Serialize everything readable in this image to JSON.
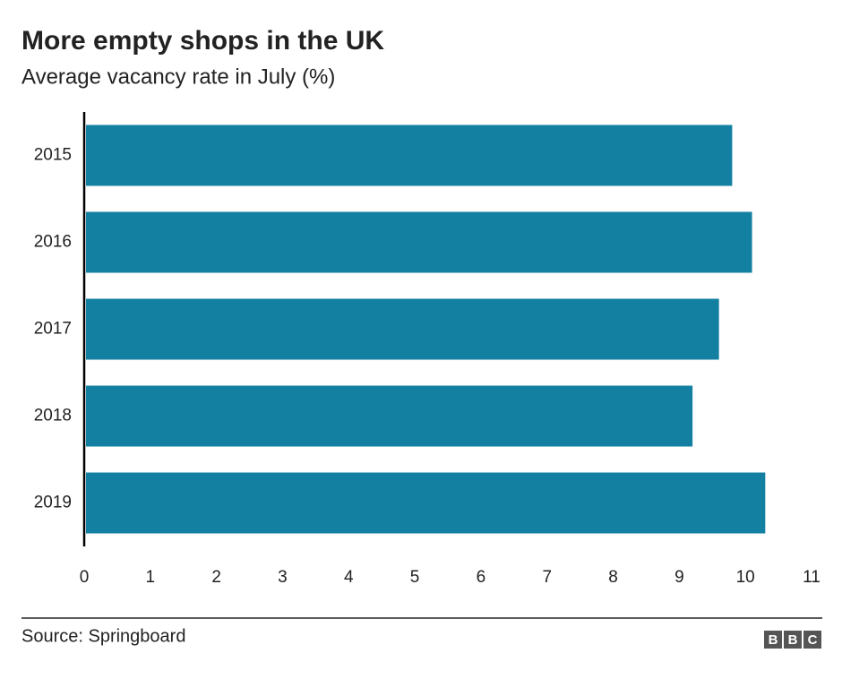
{
  "chart_data": {
    "type": "bar",
    "orientation": "horizontal",
    "title": "More empty shops in the UK",
    "subtitle": "Average vacancy rate in July (%)",
    "categories": [
      "2015",
      "2016",
      "2017",
      "2018",
      "2019"
    ],
    "values": [
      9.8,
      10.1,
      9.6,
      9.2,
      10.3
    ],
    "color": "#1380a1",
    "xlim": [
      0,
      11
    ],
    "xticks": [
      0,
      1,
      2,
      3,
      4,
      5,
      6,
      7,
      8,
      9,
      10,
      11
    ],
    "grid": false,
    "source": "Source: Springboard",
    "logo": [
      "B",
      "B",
      "C"
    ]
  }
}
